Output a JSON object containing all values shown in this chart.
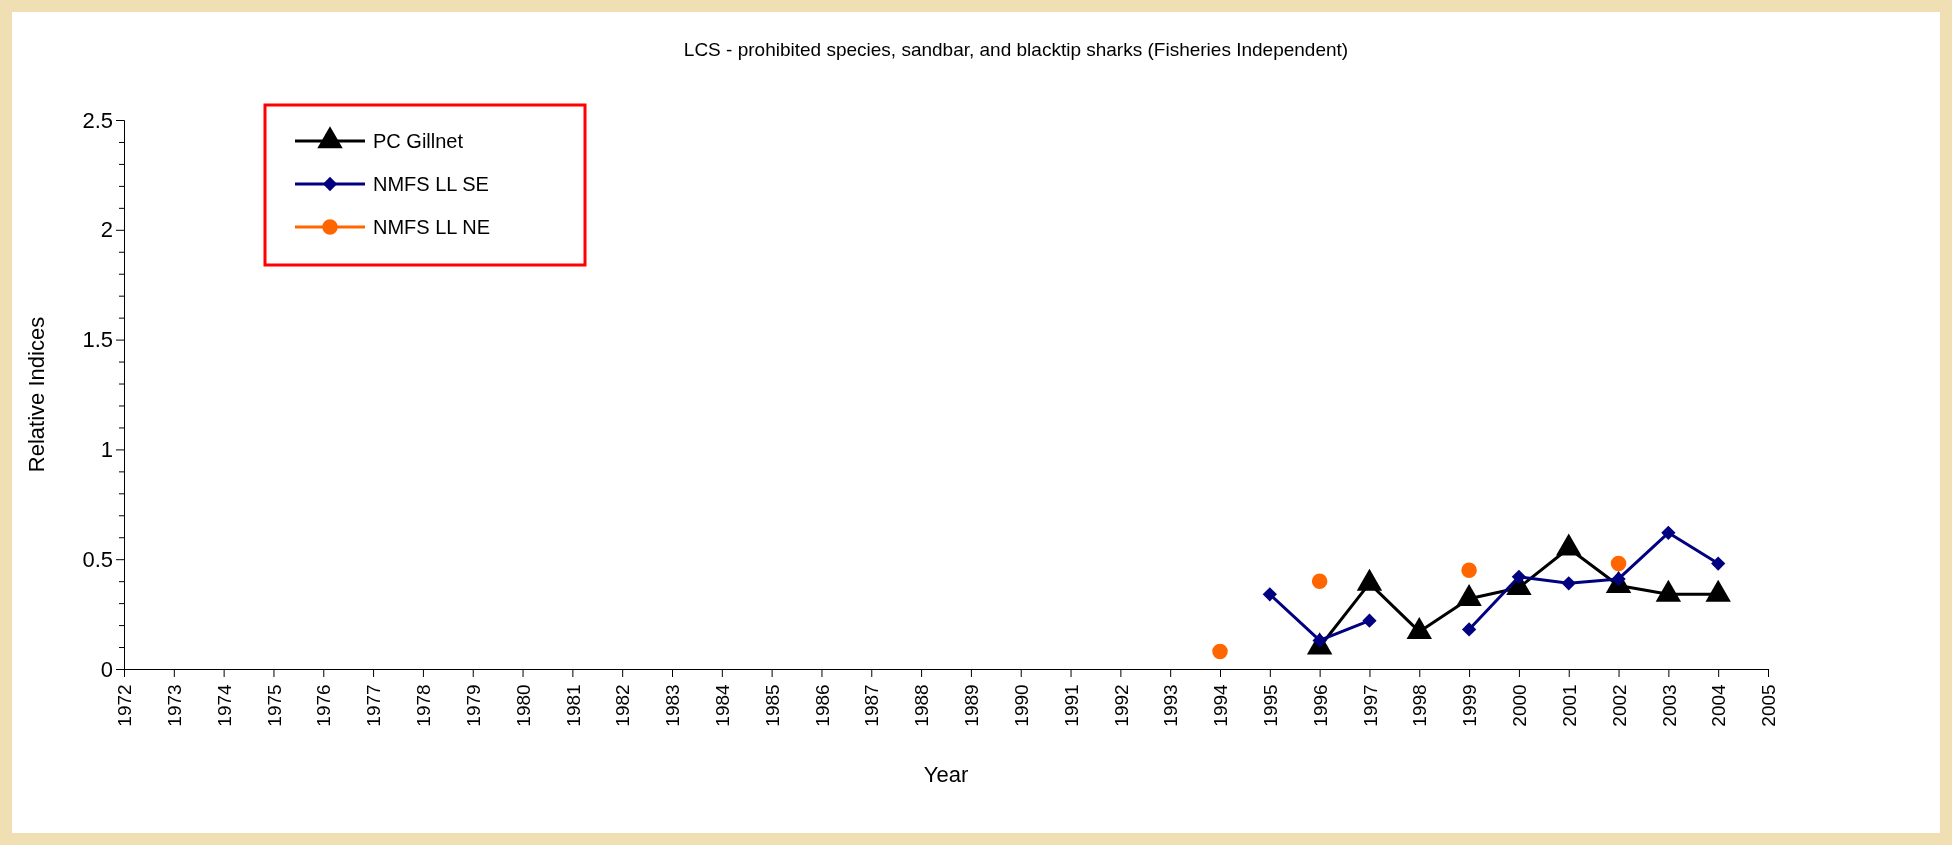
{
  "chart_data": {
    "type": "line",
    "title": "LCS - prohibited species, sandbar, and blacktip sharks (Fisheries Independent)",
    "xlabel": "Year",
    "ylabel": "Relative Indices",
    "x": [
      1994,
      1995,
      1996,
      1997,
      1998,
      1999,
      2000,
      2001,
      2002,
      2003,
      2004
    ],
    "series": [
      {
        "name": "PC Gillnet",
        "color": "#000000",
        "marker": "triangle",
        "values": [
          null,
          null,
          0.1,
          0.39,
          0.17,
          0.32,
          0.37,
          0.55,
          0.38,
          0.34,
          0.34
        ]
      },
      {
        "name": "NMFS LL SE",
        "color": "#000080",
        "marker": "diamond",
        "values": [
          null,
          0.34,
          0.13,
          0.22,
          null,
          0.18,
          0.42,
          0.39,
          0.41,
          0.62,
          0.48
        ]
      },
      {
        "name": "NMFS LL NE",
        "color": "#ff6600",
        "marker": "circle",
        "values": [
          0.08,
          null,
          0.4,
          null,
          null,
          0.45,
          null,
          null,
          0.48,
          null,
          null
        ]
      }
    ],
    "xlim": [
      1972,
      2005
    ],
    "xticks": [
      1972,
      1973,
      1974,
      1975,
      1976,
      1977,
      1978,
      1979,
      1980,
      1981,
      1982,
      1983,
      1984,
      1985,
      1986,
      1987,
      1988,
      1989,
      1990,
      1991,
      1992,
      1993,
      1994,
      1995,
      1996,
      1997,
      1998,
      1999,
      2000,
      2001,
      2002,
      2003,
      2004,
      2005
    ],
    "ylim": [
      0,
      2.5
    ],
    "yticks": [
      0,
      {
        "value": 0.1,
        "label": null
      },
      {
        "value": 0.2,
        "label": null
      },
      {
        "value": 0.3,
        "label": null
      },
      {
        "value": 0.4,
        "label": null
      },
      0.5,
      {
        "value": 0.6,
        "label": null
      },
      {
        "value": 0.7,
        "label": null
      },
      {
        "value": 0.8,
        "label": null
      },
      {
        "value": 0.9,
        "label": null
      },
      1,
      {
        "value": 1.1,
        "label": null
      },
      {
        "value": 1.2,
        "label": null
      },
      {
        "value": 1.3,
        "label": null
      },
      {
        "value": 1.4,
        "label": null
      },
      1.5,
      {
        "value": 1.6,
        "label": null
      },
      {
        "value": 1.7,
        "label": null
      },
      {
        "value": 1.8,
        "label": null
      },
      {
        "value": 1.9,
        "label": null
      },
      2,
      {
        "value": 2.1,
        "label": null
      },
      {
        "value": 2.2,
        "label": null
      },
      {
        "value": 2.3,
        "label": null
      },
      {
        "value": 2.4,
        "label": null
      },
      2.5
    ],
    "grid": false,
    "legend": "top left",
    "line_style": "solid"
  }
}
